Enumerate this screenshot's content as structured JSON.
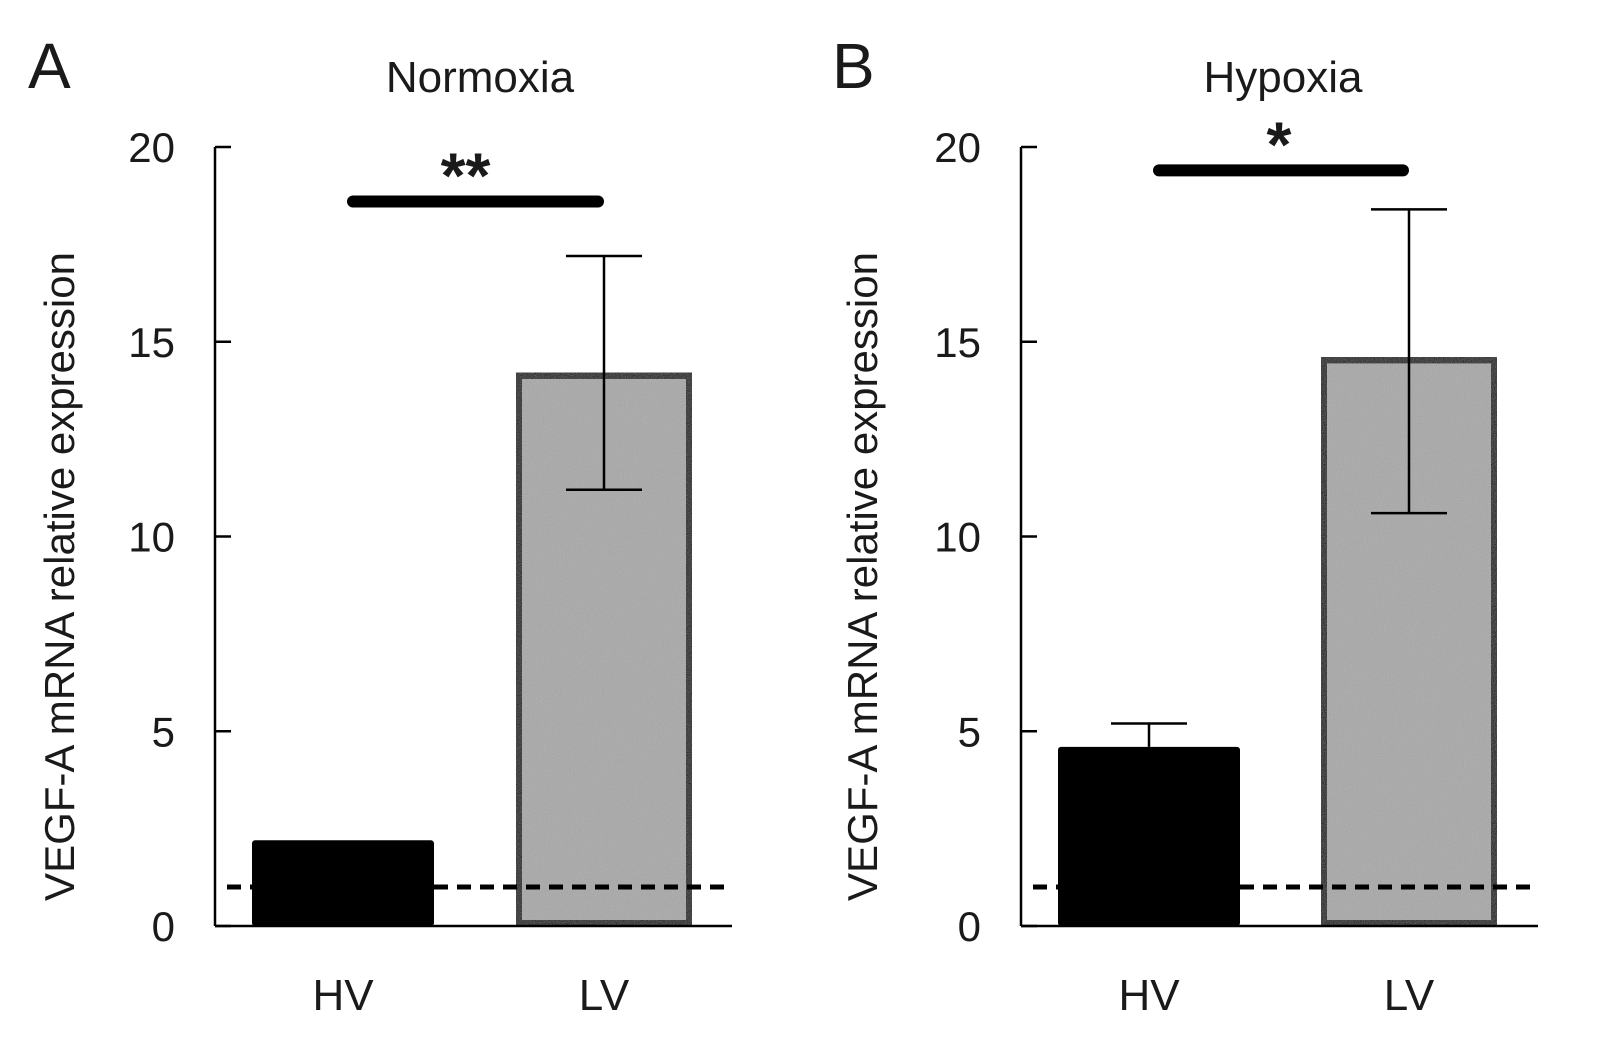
{
  "figure": {
    "panels": [
      "A",
      "B"
    ]
  },
  "colors": {
    "hv_fill": "#000000",
    "lv_fill": "#a8a8a8",
    "stroke": "#000000"
  },
  "chart_data": [
    {
      "type": "bar",
      "panel": "A",
      "title": "Normoxia",
      "ylabel": "VEGF-A mRNA relative expression",
      "xlabel": "",
      "categories": [
        "HV",
        "LV"
      ],
      "values": [
        2.2,
        14.2
      ],
      "error_upper": [
        null,
        17.2
      ],
      "error_lower": [
        null,
        11.2
      ],
      "baseline": 1,
      "ylim": [
        0,
        20
      ],
      "yticks": [
        0,
        5,
        10,
        15,
        20
      ],
      "significance": {
        "label": "**",
        "y": 18.6,
        "between": [
          "HV",
          "LV"
        ]
      }
    },
    {
      "type": "bar",
      "panel": "B",
      "title": "Hypoxia",
      "ylabel": "VEGF-A mRNA relative expression",
      "xlabel": "",
      "categories": [
        "HV",
        "LV"
      ],
      "values": [
        4.6,
        14.6
      ],
      "error_upper": [
        5.2,
        18.4
      ],
      "error_lower": [
        null,
        10.6
      ],
      "baseline": 1,
      "ylim": [
        0,
        20
      ],
      "yticks": [
        0,
        5,
        10,
        15,
        20
      ],
      "significance": {
        "label": "*",
        "y": 19.4,
        "between": [
          "HV",
          "LV"
        ]
      }
    }
  ]
}
